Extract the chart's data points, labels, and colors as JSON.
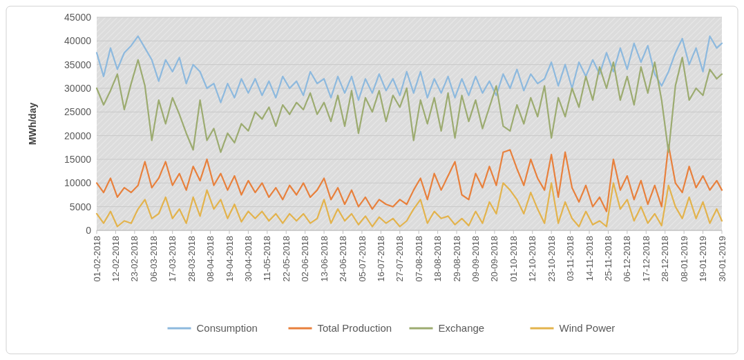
{
  "chart_data": {
    "type": "line",
    "ylabel": "MWh/day",
    "legend": "bottom",
    "grid": "y",
    "line_style": "solid",
    "marker": "none",
    "x": [
      "2018-02-01",
      "2018-02-05",
      "2018-02-09",
      "2018-02-13",
      "2018-02-17",
      "2018-02-21",
      "2018-02-25",
      "2018-03-01",
      "2018-03-05",
      "2018-03-09",
      "2018-03-13",
      "2018-03-17",
      "2018-03-21",
      "2018-03-25",
      "2018-03-29",
      "2018-04-02",
      "2018-04-06",
      "2018-04-10",
      "2018-04-14",
      "2018-04-18",
      "2018-04-22",
      "2018-04-26",
      "2018-04-30",
      "2018-05-04",
      "2018-05-08",
      "2018-05-12",
      "2018-05-16",
      "2018-05-20",
      "2018-05-24",
      "2018-05-28",
      "2018-06-01",
      "2018-06-05",
      "2018-06-09",
      "2018-06-13",
      "2018-06-17",
      "2018-06-21",
      "2018-06-25",
      "2018-06-29",
      "2018-07-03",
      "2018-07-07",
      "2018-07-11",
      "2018-07-15",
      "2018-07-19",
      "2018-07-23",
      "2018-07-27",
      "2018-07-31",
      "2018-08-04",
      "2018-08-08",
      "2018-08-12",
      "2018-08-16",
      "2018-08-20",
      "2018-08-24",
      "2018-08-28",
      "2018-09-01",
      "2018-09-05",
      "2018-09-09",
      "2018-09-13",
      "2018-09-17",
      "2018-09-21",
      "2018-09-25",
      "2018-09-29",
      "2018-10-03",
      "2018-10-07",
      "2018-10-11",
      "2018-10-15",
      "2018-10-19",
      "2018-10-23",
      "2018-10-27",
      "2018-10-31",
      "2018-11-04",
      "2018-11-08",
      "2018-11-12",
      "2018-11-16",
      "2018-11-20",
      "2018-11-24",
      "2018-11-28",
      "2018-12-02",
      "2018-12-06",
      "2018-12-10",
      "2018-12-14",
      "2018-12-18",
      "2018-12-22",
      "2018-12-26",
      "2018-12-30",
      "2019-01-03",
      "2019-01-07",
      "2019-01-11",
      "2019-01-15",
      "2019-01-19",
      "2019-01-23",
      "2019-01-27",
      "2019-01-30"
    ],
    "series": [
      {
        "name": "Consumption",
        "color": "#8db9de",
        "values": [
          37500,
          32500,
          38500,
          34000,
          37500,
          39000,
          41000,
          38500,
          36000,
          31500,
          36000,
          33500,
          36500,
          31000,
          35000,
          33500,
          30000,
          31000,
          27000,
          31000,
          28000,
          32000,
          29000,
          32000,
          28500,
          31500,
          28000,
          32500,
          30000,
          31500,
          28500,
          33500,
          31000,
          32000,
          28000,
          32500,
          29000,
          32500,
          27500,
          32000,
          29000,
          33000,
          29500,
          32000,
          28500,
          33500,
          29000,
          33500,
          28000,
          32000,
          29000,
          32500,
          28000,
          32000,
          28500,
          32500,
          29000,
          31500,
          28500,
          33000,
          30000,
          34000,
          29500,
          33000,
          31000,
          32000,
          35500,
          30500,
          35000,
          30000,
          35500,
          32500,
          36000,
          33000,
          37500,
          33500,
          38500,
          34000,
          39500,
          35500,
          39000,
          33000,
          30500,
          33500,
          37500,
          40500,
          35000,
          38500,
          33500,
          41000,
          38500,
          39500
        ]
      },
      {
        "name": "Total Production",
        "color": "#e8803c",
        "values": [
          10000,
          8000,
          11000,
          7000,
          9000,
          8000,
          9500,
          14500,
          9000,
          11000,
          14500,
          9500,
          12000,
          8500,
          13500,
          10500,
          15000,
          9500,
          12000,
          8500,
          11500,
          7500,
          10500,
          8000,
          10000,
          7000,
          9000,
          6500,
          9500,
          7500,
          10000,
          7000,
          8500,
          11000,
          6500,
          9000,
          5500,
          8500,
          5000,
          7000,
          4500,
          6500,
          5500,
          5000,
          6500,
          5500,
          8500,
          11000,
          6500,
          12000,
          8500,
          11500,
          14500,
          7500,
          6500,
          12000,
          9000,
          13500,
          9500,
          16500,
          17000,
          13000,
          9500,
          15000,
          11000,
          8500,
          16000,
          7000,
          16500,
          9000,
          6000,
          9500,
          5000,
          7000,
          4000,
          15000,
          8500,
          11500,
          6500,
          10500,
          5500,
          9500,
          5000,
          18000,
          10000,
          8000,
          13500,
          9000,
          11500,
          8500,
          10500,
          8500
        ]
      },
      {
        "name": "Exchange",
        "color": "#9cab70",
        "values": [
          30000,
          26500,
          29500,
          33000,
          25500,
          31000,
          36000,
          30500,
          19000,
          27500,
          22500,
          28000,
          24500,
          20500,
          17000,
          27500,
          19000,
          21500,
          16500,
          20500,
          18500,
          22500,
          21000,
          25000,
          23500,
          26000,
          22000,
          26500,
          24500,
          27000,
          25500,
          29000,
          24500,
          27000,
          23000,
          28500,
          22000,
          29500,
          20500,
          28000,
          25000,
          29500,
          23000,
          28500,
          26000,
          30000,
          19000,
          27500,
          22500,
          28000,
          21000,
          29000,
          19500,
          28500,
          23000,
          27500,
          21500,
          26000,
          30500,
          22000,
          21000,
          26500,
          22500,
          28000,
          24000,
          30500,
          19500,
          28000,
          24000,
          30000,
          26000,
          32500,
          27500,
          34500,
          30000,
          35500,
          27500,
          32500,
          26500,
          34500,
          29000,
          35500,
          27500,
          16500,
          30500,
          36500,
          27500,
          30000,
          28500,
          34000,
          32000,
          33000
        ]
      },
      {
        "name": "Wind Power",
        "color": "#e3b34c",
        "values": [
          3500,
          1500,
          4000,
          800,
          2000,
          1500,
          4500,
          6500,
          2500,
          3500,
          7000,
          2500,
          4500,
          1500,
          7000,
          3000,
          8500,
          4500,
          6500,
          2500,
          5500,
          1800,
          4000,
          2500,
          4000,
          2000,
          3500,
          1500,
          3500,
          2000,
          3500,
          1500,
          2500,
          6500,
          1500,
          4500,
          2000,
          3500,
          1200,
          3000,
          800,
          2800,
          1500,
          2500,
          800,
          2000,
          4500,
          6500,
          1500,
          4000,
          2500,
          3000,
          1200,
          2500,
          1000,
          4000,
          1500,
          6000,
          3500,
          10000,
          8500,
          6500,
          3500,
          8000,
          4500,
          1500,
          10000,
          1500,
          6000,
          2500,
          800,
          4000,
          1200,
          2000,
          800,
          10000,
          4500,
          6500,
          2000,
          5000,
          1500,
          3500,
          1000,
          9500,
          5000,
          2500,
          7000,
          2500,
          6000,
          1500,
          4500,
          2000
        ]
      }
    ],
    "xlim": [
      "2018-02-01",
      "2019-01-30"
    ],
    "xticks": [
      {
        "value": "2018-02-01",
        "label": "01-02-2018"
      },
      {
        "value": "2018-02-12",
        "label": "12-02-2018"
      },
      {
        "value": "2018-02-23",
        "label": "23-02-2018"
      },
      {
        "value": "2018-03-06",
        "label": "06-03-2018"
      },
      {
        "value": "2018-03-17",
        "label": "17-03-2018"
      },
      {
        "value": "2018-03-28",
        "label": "28-03-2018"
      },
      {
        "value": "2018-04-08",
        "label": "08-04-2018"
      },
      {
        "value": "2018-04-19",
        "label": "19-04-2018"
      },
      {
        "value": "2018-04-30",
        "label": "30-04-2018"
      },
      {
        "value": "2018-05-11",
        "label": "11-05-2018"
      },
      {
        "value": "2018-05-22",
        "label": "22-05-2018"
      },
      {
        "value": "2018-06-02",
        "label": "02-06-2018"
      },
      {
        "value": "2018-06-13",
        "label": "13-06-2018"
      },
      {
        "value": "2018-06-24",
        "label": "24-06-2018"
      },
      {
        "value": "2018-07-05",
        "label": "05-07-2018"
      },
      {
        "value": "2018-07-16",
        "label": "16-07-2018"
      },
      {
        "value": "2018-07-27",
        "label": "27-07-2018"
      },
      {
        "value": "2018-08-07",
        "label": "07-08-2018"
      },
      {
        "value": "2018-08-18",
        "label": "18-08-2018"
      },
      {
        "value": "2018-08-29",
        "label": "29-08-2018"
      },
      {
        "value": "2018-09-09",
        "label": "09-09-2018"
      },
      {
        "value": "2018-09-20",
        "label": "20-09-2018"
      },
      {
        "value": "2018-10-01",
        "label": "01-10-2018"
      },
      {
        "value": "2018-10-12",
        "label": "12-10-2018"
      },
      {
        "value": "2018-10-23",
        "label": "23-10-2018"
      },
      {
        "value": "2018-11-03",
        "label": "03-11-2018"
      },
      {
        "value": "2018-11-14",
        "label": "14-11-2018"
      },
      {
        "value": "2018-11-25",
        "label": "25-11-2018"
      },
      {
        "value": "2018-12-06",
        "label": "06-12-2018"
      },
      {
        "value": "2018-12-17",
        "label": "17-12-2018"
      },
      {
        "value": "2018-12-28",
        "label": "28-12-2018"
      },
      {
        "value": "2019-01-08",
        "label": "08-01-2019"
      },
      {
        "value": "2019-01-19",
        "label": "19-01-2019"
      },
      {
        "value": "2019-01-30",
        "label": "30-01-2019"
      }
    ],
    "ylim": [
      0,
      45000
    ],
    "yticks": [
      0,
      5000,
      10000,
      15000,
      20000,
      25000,
      30000,
      35000,
      40000,
      45000
    ]
  }
}
